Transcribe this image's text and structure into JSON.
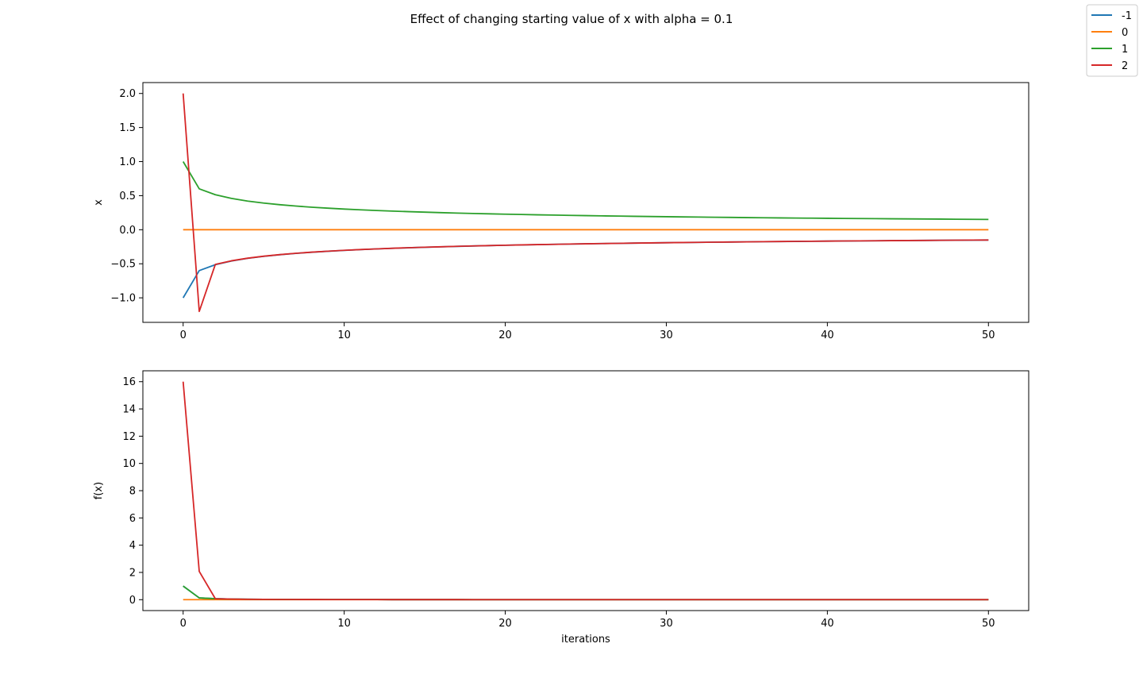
{
  "figure": {
    "title": "Effect of changing starting value of x with alpha = 0.1"
  },
  "legend": {
    "placement": "upper-right-of-figure",
    "entries": [
      {
        "label": "-1",
        "color": "#1f77b4"
      },
      {
        "label": "0",
        "color": "#ff7f0e"
      },
      {
        "label": "1",
        "color": "#2ca02c"
      },
      {
        "label": "2",
        "color": "#d62728"
      }
    ]
  },
  "chart_data": [
    {
      "type": "line",
      "ylabel": "x",
      "xlabel": "",
      "xlim": [
        -2.5,
        52.5
      ],
      "ylim": [
        -1.36,
        2.16
      ],
      "xticks": [
        0,
        10,
        20,
        30,
        40,
        50
      ],
      "yticks": [
        -1.0,
        -0.5,
        0.0,
        0.5,
        1.0,
        1.5,
        2.0
      ],
      "ytick_labels": [
        "−1.0",
        "−0.5",
        "0.0",
        "0.5",
        "1.0",
        "1.5",
        "2.0"
      ],
      "grid": false,
      "series": [
        {
          "name": "-1",
          "color": "#1f77b4",
          "start": -1,
          "mode": "x"
        },
        {
          "name": "0",
          "color": "#ff7f0e",
          "start": 0,
          "mode": "x"
        },
        {
          "name": "1",
          "color": "#2ca02c",
          "start": 1,
          "mode": "x"
        },
        {
          "name": "2",
          "color": "#d62728",
          "start": 2,
          "mode": "x"
        }
      ]
    },
    {
      "type": "line",
      "ylabel": "f(x)",
      "xlabel": "iterations",
      "xlim": [
        -2.5,
        52.5
      ],
      "ylim": [
        -0.8,
        16.8
      ],
      "xticks": [
        0,
        10,
        20,
        30,
        40,
        50
      ],
      "yticks": [
        0,
        2,
        4,
        6,
        8,
        10,
        12,
        14,
        16
      ],
      "ytick_labels": [
        "0",
        "2",
        "4",
        "6",
        "8",
        "10",
        "12",
        "14",
        "16"
      ],
      "grid": false,
      "series": [
        {
          "name": "-1",
          "color": "#1f77b4",
          "start": -1,
          "mode": "fx"
        },
        {
          "name": "0",
          "color": "#ff7f0e",
          "start": 0,
          "mode": "fx"
        },
        {
          "name": "1",
          "color": "#2ca02c",
          "start": 1,
          "mode": "fx"
        },
        {
          "name": "2",
          "color": "#d62728",
          "start": 2,
          "mode": "fx"
        }
      ]
    }
  ]
}
